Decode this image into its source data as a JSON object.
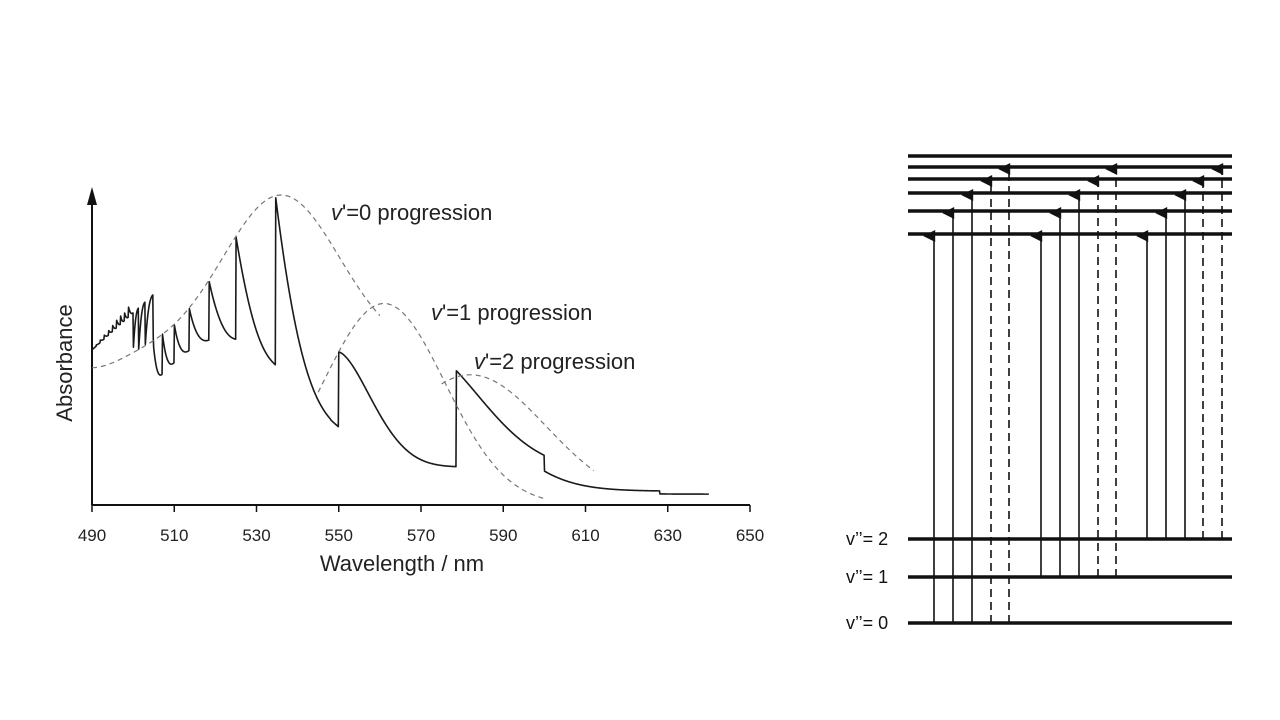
{
  "chart_data": {
    "type": "line",
    "xlabel": "Wavelength / nm",
    "ylabel": "Absorbance",
    "xlim": [
      490,
      650
    ],
    "x_ticks": [
      "490",
      "510",
      "530",
      "550",
      "570",
      "590",
      "610",
      "630",
      "650"
    ],
    "annotations": {
      "v0": {
        "symbol": "v",
        "rest": "'=0 progression"
      },
      "v1": {
        "symbol": "v",
        "rest": "'=1 progression"
      },
      "v2": {
        "symbol": "v",
        "rest": "'=2 progression"
      }
    },
    "grid": false
  },
  "diagram": {
    "ground_levels": [
      {
        "label": "v’’= 2"
      },
      {
        "label": "v’’= 1"
      },
      {
        "label": "v’’= 0"
      }
    ]
  }
}
